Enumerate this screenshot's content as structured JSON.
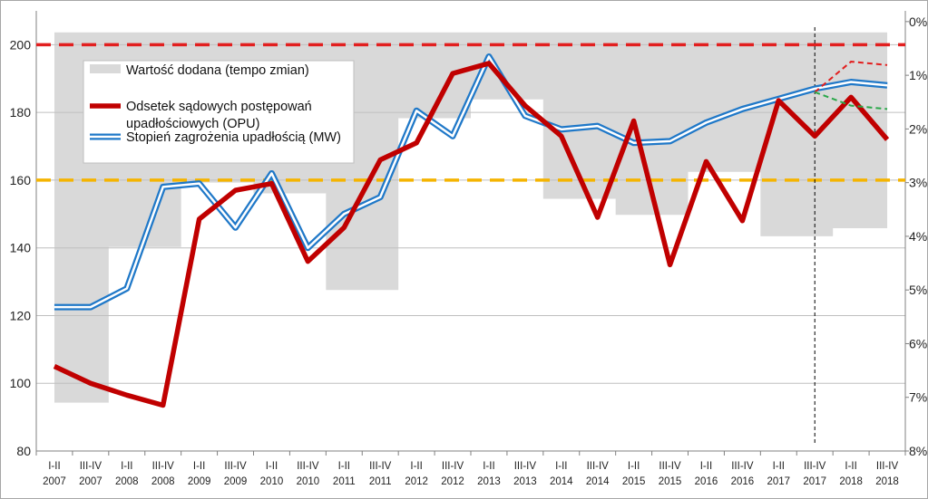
{
  "chart_data": {
    "type": "line",
    "categories": [
      [
        "I-II",
        "2007"
      ],
      [
        "III-IV",
        "2007"
      ],
      [
        "I-II",
        "2008"
      ],
      [
        "III-IV",
        "2008"
      ],
      [
        "I-II",
        "2009"
      ],
      [
        "III-IV",
        "2009"
      ],
      [
        "I-II",
        "2010"
      ],
      [
        "III-IV",
        "2010"
      ],
      [
        "I-II",
        "2011"
      ],
      [
        "III-IV",
        "2011"
      ],
      [
        "I-II",
        "2012"
      ],
      [
        "III-IV",
        "2012"
      ],
      [
        "I-II",
        "2013"
      ],
      [
        "III-IV",
        "2013"
      ],
      [
        "I-II",
        "2014"
      ],
      [
        "III-IV",
        "2014"
      ],
      [
        "I-II",
        "2015"
      ],
      [
        "III-IV",
        "2015"
      ],
      [
        "I-II",
        "2016"
      ],
      [
        "III-IV",
        "2016"
      ],
      [
        "I-II",
        "2017"
      ],
      [
        "III-IV",
        "2017"
      ],
      [
        "I-II",
        "2018"
      ],
      [
        "III-IV",
        "2018"
      ]
    ],
    "y_left": {
      "ylim": [
        80,
        210
      ],
      "ticks": [
        80,
        100,
        120,
        140,
        160,
        180,
        200
      ]
    },
    "y_right": {
      "ylim": [
        8,
        -0.2
      ],
      "ticks": [
        "0%",
        "1%",
        "2%",
        "3%",
        "4%",
        "5%",
        "6%",
        "7%",
        "8%"
      ],
      "tick_values": [
        0,
        1,
        2,
        3,
        4,
        5,
        6,
        7,
        8
      ],
      "inverted": true
    },
    "series": [
      {
        "name": "Wartość dodana (tempo zmian)",
        "type": "area",
        "axis": "right",
        "color": "#d9d9d9",
        "values": [
          7.1,
          7.1,
          4.2,
          4.2,
          3.0,
          3.0,
          3.2,
          3.2,
          5.0,
          5.0,
          1.8,
          1.8,
          1.45,
          1.45,
          3.3,
          3.3,
          3.6,
          3.6,
          2.8,
          2.8,
          4.0,
          4.0,
          3.85,
          3.85
        ]
      },
      {
        "name": "Odsetek sądowych postępowań upadłościowych (OPU)",
        "type": "line",
        "axis": "left",
        "color": "#c00000",
        "values": [
          105,
          100,
          96.5,
          93.5,
          148.5,
          157,
          159,
          136,
          146,
          166,
          171,
          191.5,
          194.5,
          182,
          173,
          149,
          177.5,
          135,
          165.5,
          148,
          183.5,
          173,
          184.5,
          172
        ]
      },
      {
        "name": "Stopień zagrożenia upadłością (MW)",
        "type": "line",
        "axis": "left",
        "color": "#1f78c8",
        "values": [
          122.5,
          122.5,
          128,
          158,
          159,
          146,
          162,
          140,
          150,
          155,
          180.5,
          173,
          196.5,
          179,
          175,
          176,
          171,
          171.5,
          177,
          181,
          184,
          187,
          189,
          188
        ]
      }
    ],
    "reference_lines": [
      {
        "axis": "left",
        "value": 200,
        "color": "#e21f1f"
      },
      {
        "axis": "left",
        "value": 160,
        "color": "#f5b400"
      }
    ],
    "forecast_lines": [
      {
        "color": "#e21f1f",
        "points": [
          [
            21,
            186
          ],
          [
            22,
            195
          ],
          [
            23,
            194
          ]
        ]
      },
      {
        "color": "#2aa84a",
        "points": [
          [
            21,
            186
          ],
          [
            22,
            182
          ],
          [
            23,
            181
          ]
        ]
      }
    ],
    "vertical_marker_index": 21,
    "legend_position": "top-left",
    "grid": "horizontal"
  }
}
